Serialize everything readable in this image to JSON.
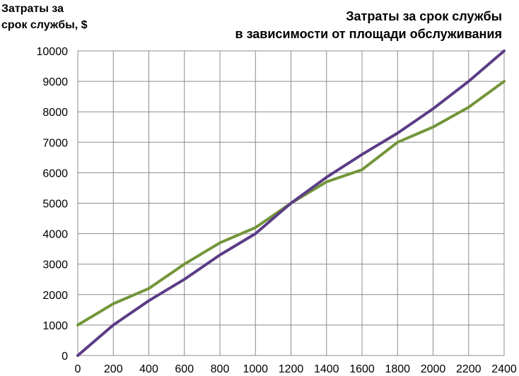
{
  "chart_data": {
    "type": "line",
    "title": [
      "Затраты за срок службы",
      "в зависимости от площади обслуживания"
    ],
    "ylabel": "Затраты за\nсрок службы, $",
    "xlabel": "",
    "x": [
      0,
      200,
      400,
      600,
      800,
      1000,
      1200,
      1400,
      1600,
      1800,
      2000,
      2200,
      2400
    ],
    "xlim": [
      0,
      2400
    ],
    "ylim": [
      0,
      10000
    ],
    "xticks": [
      0,
      200,
      400,
      600,
      800,
      1000,
      1200,
      1400,
      1600,
      1800,
      2000,
      2200,
      2400
    ],
    "yticks": [
      0,
      1000,
      2000,
      3000,
      4000,
      5000,
      6000,
      7000,
      8000,
      9000,
      10000
    ],
    "grid": true,
    "legend": "none",
    "series": [
      {
        "color": "#5B3C86",
        "values": [
          0,
          1000,
          1800,
          2500,
          3300,
          4000,
          5000,
          5850,
          6600,
          7300,
          8100,
          9000,
          10000
        ]
      },
      {
        "color": "#73963A",
        "values": [
          1000,
          1700,
          2200,
          3000,
          3700,
          4200,
          5000,
          5700,
          6100,
          7000,
          7500,
          8150,
          9000
        ]
      }
    ]
  }
}
